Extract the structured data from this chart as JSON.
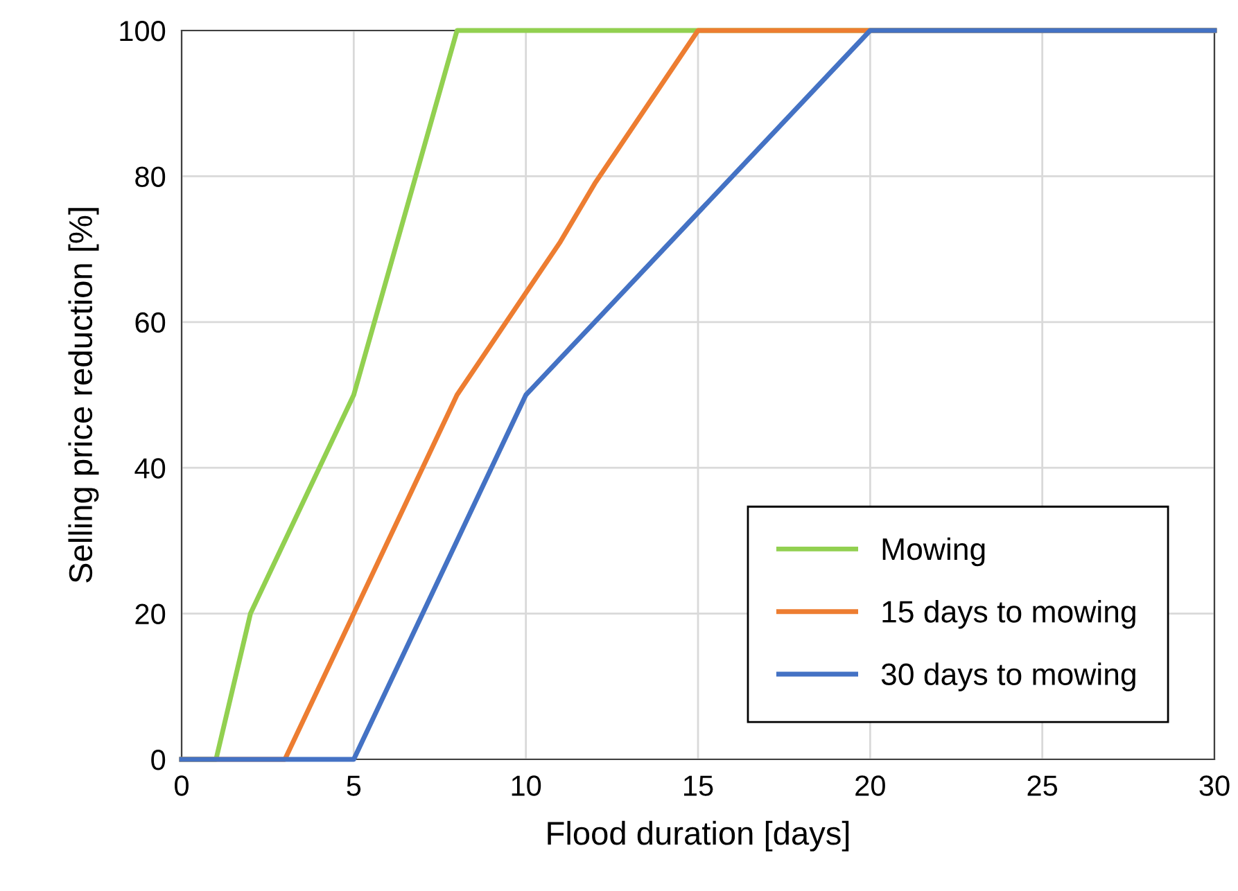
{
  "chart_data": {
    "type": "line",
    "xlabel": "Flood duration [days]",
    "ylabel": "Selling price reduction [%]",
    "xlim": [
      0,
      30
    ],
    "xticks": [
      0,
      5,
      10,
      15,
      20,
      25,
      30
    ],
    "ylim": [
      0,
      100
    ],
    "yticks": [
      0,
      20,
      40,
      60,
      80,
      100
    ],
    "grid": true,
    "legend": "bottom right",
    "marker": "none",
    "line_style": "solid",
    "series": [
      {
        "name": "Mowing",
        "color": "#92d050",
        "x": [
          0,
          1,
          2,
          5,
          8,
          30
        ],
        "values": [
          0,
          0,
          20,
          50,
          100,
          100
        ]
      },
      {
        "name": "15 days to mowing",
        "color": "#ed7d31",
        "x": [
          0,
          3,
          8,
          11,
          12,
          15,
          30
        ],
        "values": [
          0,
          0,
          50,
          71,
          79,
          100,
          100
        ]
      },
      {
        "name": "30 days to mowing",
        "color": "#4472c4",
        "x": [
          0,
          5,
          8,
          10,
          11,
          12,
          15,
          20,
          30
        ],
        "values": [
          0,
          0,
          30,
          50,
          55,
          60,
          75,
          100,
          100
        ]
      }
    ]
  }
}
